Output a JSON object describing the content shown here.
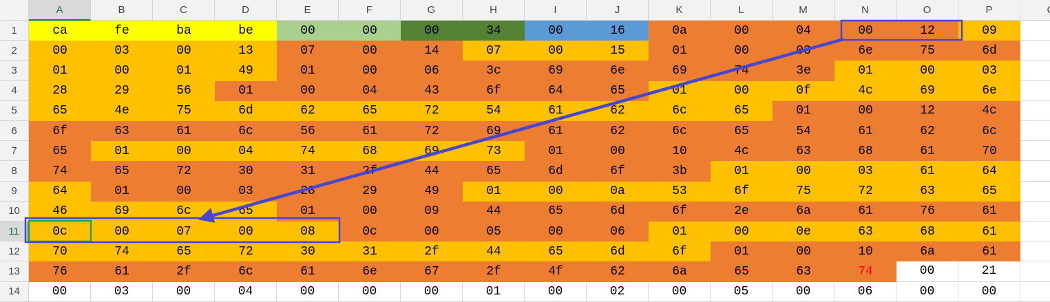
{
  "columns": [
    "A",
    "B",
    "C",
    "D",
    "E",
    "F",
    "G",
    "H",
    "I",
    "J",
    "K",
    "L",
    "M",
    "N",
    "O",
    "P",
    "Q"
  ],
  "rows": [
    {
      "label": "1",
      "cells": [
        "ca",
        "fe",
        "ba",
        "be",
        "00",
        "00",
        "00",
        "34",
        "00",
        "16",
        "0a",
        "00",
        "04",
        "00",
        "12",
        "09"
      ],
      "fills": [
        "#ffff00",
        "#ffff00",
        "#ffff00",
        "#ffff00",
        "#a9d08e",
        "#a9d08e",
        "#548235",
        "#548235",
        "#5b9bd5",
        "#5b9bd5",
        "#ed7d31",
        "#ed7d31",
        "#ed7d31",
        "#ed7d31",
        "#ed7d31",
        "#ffc000"
      ]
    },
    {
      "label": "2",
      "cells": [
        "00",
        "03",
        "00",
        "13",
        "07",
        "00",
        "14",
        "07",
        "00",
        "15",
        "01",
        "00",
        "03",
        "6e",
        "75",
        "6d"
      ],
      "fills": [
        "#ffc000",
        "#ffc000",
        "#ffc000",
        "#ffc000",
        "#ed7d31",
        "#ed7d31",
        "#ed7d31",
        "#ffc000",
        "#ffc000",
        "#ffc000",
        "#ed7d31",
        "#ed7d31",
        "#ed7d31",
        "#ed7d31",
        "#ed7d31",
        "#ed7d31"
      ]
    },
    {
      "label": "3",
      "cells": [
        "01",
        "00",
        "01",
        "49",
        "01",
        "00",
        "06",
        "3c",
        "69",
        "6e",
        "69",
        "74",
        "3e",
        "01",
        "00",
        "03"
      ],
      "fills": [
        "#ffc000",
        "#ffc000",
        "#ffc000",
        "#ffc000",
        "#ed7d31",
        "#ed7d31",
        "#ed7d31",
        "#ed7d31",
        "#ed7d31",
        "#ed7d31",
        "#ed7d31",
        "#ed7d31",
        "#ed7d31",
        "#ffc000",
        "#ffc000",
        "#ffc000"
      ]
    },
    {
      "label": "4",
      "cells": [
        "28",
        "29",
        "56",
        "01",
        "00",
        "04",
        "43",
        "6f",
        "64",
        "65",
        "01",
        "00",
        "0f",
        "4c",
        "69",
        "6e"
      ],
      "fills": [
        "#ffc000",
        "#ffc000",
        "#ffc000",
        "#ed7d31",
        "#ed7d31",
        "#ed7d31",
        "#ed7d31",
        "#ed7d31",
        "#ed7d31",
        "#ed7d31",
        "#ffc000",
        "#ffc000",
        "#ffc000",
        "#ffc000",
        "#ffc000",
        "#ffc000"
      ]
    },
    {
      "label": "5",
      "cells": [
        "65",
        "4e",
        "75",
        "6d",
        "62",
        "65",
        "72",
        "54",
        "61",
        "62",
        "6c",
        "65",
        "01",
        "00",
        "12",
        "4c"
      ],
      "fills": [
        "#ffc000",
        "#ffc000",
        "#ffc000",
        "#ffc000",
        "#ffc000",
        "#ffc000",
        "#ffc000",
        "#ffc000",
        "#ffc000",
        "#ffc000",
        "#ffc000",
        "#ffc000",
        "#ed7d31",
        "#ed7d31",
        "#ed7d31",
        "#ed7d31"
      ]
    },
    {
      "label": "6",
      "cells": [
        "6f",
        "63",
        "61",
        "6c",
        "56",
        "61",
        "72",
        "69",
        "61",
        "62",
        "6c",
        "65",
        "54",
        "61",
        "62",
        "6c"
      ],
      "fills": [
        "#ed7d31",
        "#ed7d31",
        "#ed7d31",
        "#ed7d31",
        "#ed7d31",
        "#ed7d31",
        "#ed7d31",
        "#ed7d31",
        "#ed7d31",
        "#ed7d31",
        "#ed7d31",
        "#ed7d31",
        "#ed7d31",
        "#ed7d31",
        "#ed7d31",
        "#ed7d31"
      ]
    },
    {
      "label": "7",
      "cells": [
        "65",
        "01",
        "00",
        "04",
        "74",
        "68",
        "69",
        "73",
        "01",
        "00",
        "10",
        "4c",
        "63",
        "68",
        "61",
        "70"
      ],
      "fills": [
        "#ed7d31",
        "#ffc000",
        "#ffc000",
        "#ffc000",
        "#ffc000",
        "#ffc000",
        "#ffc000",
        "#ffc000",
        "#ed7d31",
        "#ed7d31",
        "#ed7d31",
        "#ed7d31",
        "#ed7d31",
        "#ed7d31",
        "#ed7d31",
        "#ed7d31"
      ]
    },
    {
      "label": "8",
      "cells": [
        "74",
        "65",
        "72",
        "30",
        "31",
        "2f",
        "44",
        "65",
        "6d",
        "6f",
        "3b",
        "01",
        "00",
        "03",
        "61",
        "64"
      ],
      "fills": [
        "#ed7d31",
        "#ed7d31",
        "#ed7d31",
        "#ed7d31",
        "#ed7d31",
        "#ed7d31",
        "#ed7d31",
        "#ed7d31",
        "#ed7d31",
        "#ed7d31",
        "#ed7d31",
        "#ffc000",
        "#ffc000",
        "#ffc000",
        "#ffc000",
        "#ffc000"
      ]
    },
    {
      "label": "9",
      "cells": [
        "64",
        "01",
        "00",
        "03",
        "28",
        "29",
        "49",
        "01",
        "00",
        "0a",
        "53",
        "6f",
        "75",
        "72",
        "63",
        "65"
      ],
      "fills": [
        "#ffc000",
        "#ed7d31",
        "#ed7d31",
        "#ed7d31",
        "#ed7d31",
        "#ed7d31",
        "#ed7d31",
        "#ffc000",
        "#ffc000",
        "#ffc000",
        "#ffc000",
        "#ffc000",
        "#ffc000",
        "#ffc000",
        "#ffc000",
        "#ffc000"
      ]
    },
    {
      "label": "10",
      "cells": [
        "46",
        "69",
        "6c",
        "65",
        "01",
        "00",
        "09",
        "44",
        "65",
        "6d",
        "6f",
        "2e",
        "6a",
        "61",
        "76",
        "61"
      ],
      "fills": [
        "#ffc000",
        "#ffc000",
        "#ffc000",
        "#ffc000",
        "#ed7d31",
        "#ed7d31",
        "#ed7d31",
        "#ed7d31",
        "#ed7d31",
        "#ed7d31",
        "#ed7d31",
        "#ed7d31",
        "#ed7d31",
        "#ed7d31",
        "#ed7d31",
        "#ed7d31"
      ]
    },
    {
      "label": "11",
      "cells": [
        "0c",
        "00",
        "07",
        "00",
        "08",
        "0c",
        "00",
        "05",
        "00",
        "06",
        "01",
        "00",
        "0e",
        "63",
        "68",
        "61"
      ],
      "fills": [
        "#ffc000",
        "#ffc000",
        "#ffc000",
        "#ffc000",
        "#ffc000",
        "#ed7d31",
        "#ed7d31",
        "#ed7d31",
        "#ed7d31",
        "#ed7d31",
        "#ffc000",
        "#ffc000",
        "#ffc000",
        "#ffc000",
        "#ffc000",
        "#ffc000"
      ]
    },
    {
      "label": "12",
      "cells": [
        "70",
        "74",
        "65",
        "72",
        "30",
        "31",
        "2f",
        "44",
        "65",
        "6d",
        "6f",
        "01",
        "00",
        "10",
        "6a",
        "61"
      ],
      "fills": [
        "#ffc000",
        "#ffc000",
        "#ffc000",
        "#ffc000",
        "#ffc000",
        "#ffc000",
        "#ffc000",
        "#ffc000",
        "#ffc000",
        "#ffc000",
        "#ffc000",
        "#ed7d31",
        "#ed7d31",
        "#ed7d31",
        "#ed7d31",
        "#ed7d31"
      ]
    },
    {
      "label": "13",
      "cells": [
        "76",
        "61",
        "2f",
        "6c",
        "61",
        "6e",
        "67",
        "2f",
        "4f",
        "62",
        "6a",
        "65",
        "63",
        "74",
        "00",
        "21"
      ],
      "fills": [
        "#ed7d31",
        "#ed7d31",
        "#ed7d31",
        "#ed7d31",
        "#ed7d31",
        "#ed7d31",
        "#ed7d31",
        "#ed7d31",
        "#ed7d31",
        "#ed7d31",
        "#ed7d31",
        "#ed7d31",
        "#ed7d31",
        "#ed7d31",
        "#ffffff",
        "#ffffff"
      ],
      "font_colors": [
        "#000000",
        "#000000",
        "#000000",
        "#000000",
        "#000000",
        "#000000",
        "#000000",
        "#000000",
        "#000000",
        "#000000",
        "#000000",
        "#000000",
        "#000000",
        "#ff0000",
        "#000000",
        "#000000"
      ]
    },
    {
      "label": "14",
      "cells": [
        "00",
        "03",
        "00",
        "04",
        "00",
        "00",
        "00",
        "01",
        "00",
        "02",
        "00",
        "05",
        "00",
        "06",
        "00",
        "00"
      ],
      "fills": [
        "#ffffff",
        "#ffffff",
        "#ffffff",
        "#ffffff",
        "#ffffff",
        "#ffffff",
        "#ffffff",
        "#ffffff",
        "#ffffff",
        "#ffffff",
        "#ffffff",
        "#ffffff",
        "#ffffff",
        "#ffffff",
        "#ffffff",
        "#ffffff"
      ]
    }
  ]
}
